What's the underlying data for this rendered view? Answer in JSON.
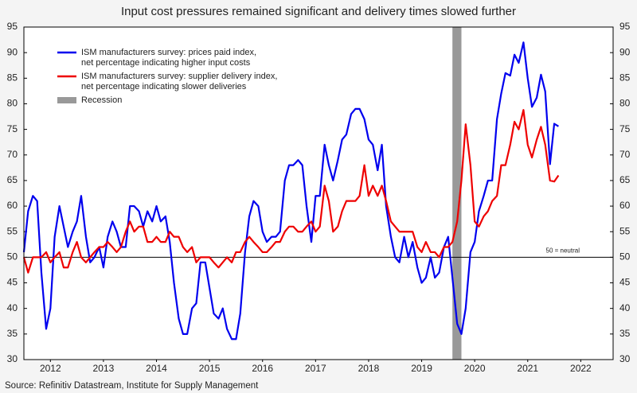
{
  "chart_data": {
    "type": "line",
    "title": "Input cost pressures remained significant and delivery times slowed further",
    "source": "Source: Refinitiv Datastream, Institute for Supply Management",
    "annotation": "50 = neutral",
    "hline": 50,
    "recession": {
      "name": "Recession",
      "color": "#999999",
      "x": [
        2020.08,
        2020.25
      ]
    },
    "x": [
      2012.0,
      2012.08,
      2012.17,
      2012.25,
      2012.33,
      2012.42,
      2012.5,
      2012.58,
      2012.67,
      2012.75,
      2012.83,
      2012.92,
      2013.0,
      2013.08,
      2013.17,
      2013.25,
      2013.33,
      2013.42,
      2013.5,
      2013.58,
      2013.67,
      2013.75,
      2013.83,
      2013.92,
      2014.0,
      2014.08,
      2014.17,
      2014.25,
      2014.33,
      2014.42,
      2014.5,
      2014.58,
      2014.67,
      2014.75,
      2014.83,
      2014.92,
      2015.0,
      2015.08,
      2015.17,
      2015.25,
      2015.33,
      2015.42,
      2015.5,
      2015.58,
      2015.67,
      2015.75,
      2015.83,
      2015.92,
      2016.0,
      2016.08,
      2016.17,
      2016.25,
      2016.33,
      2016.42,
      2016.5,
      2016.58,
      2016.67,
      2016.75,
      2016.83,
      2016.92,
      2017.0,
      2017.08,
      2017.17,
      2017.25,
      2017.33,
      2017.42,
      2017.5,
      2017.58,
      2017.67,
      2017.75,
      2017.83,
      2017.92,
      2018.0,
      2018.08,
      2018.17,
      2018.25,
      2018.33,
      2018.42,
      2018.5,
      2018.58,
      2018.67,
      2018.75,
      2018.83,
      2018.92,
      2019.0,
      2019.08,
      2019.17,
      2019.25,
      2019.33,
      2019.42,
      2019.5,
      2019.58,
      2019.67,
      2019.75,
      2019.83,
      2019.92,
      2020.0,
      2020.08,
      2020.17,
      2020.25,
      2020.33,
      2020.42,
      2020.5,
      2020.58,
      2020.67,
      2020.75,
      2020.83,
      2020.92,
      2021.0,
      2021.08,
      2021.17,
      2021.25,
      2021.33,
      2021.42,
      2021.5,
      2021.58,
      2021.67,
      2021.75,
      2021.83,
      2021.92,
      2022.0,
      2022.08
    ],
    "series": [
      {
        "name": "ISM manufacturers survey: prices paid index,\nnet percentage indicating higher input costs",
        "color": "#0000ee",
        "values": [
          51,
          59,
          62,
          61,
          47,
          36,
          40,
          54,
          60,
          56,
          52,
          55,
          57,
          62,
          54,
          49,
          50,
          52,
          48,
          54,
          57,
          55,
          52,
          52,
          60,
          60,
          59,
          56,
          59,
          57,
          60,
          57,
          58,
          53,
          45,
          38,
          35,
          35,
          40,
          41,
          49,
          49,
          44,
          39,
          38,
          40,
          36,
          34,
          34,
          39,
          51,
          58,
          61,
          60,
          55,
          53,
          54,
          54,
          55,
          65,
          68,
          68,
          69,
          68,
          60,
          53,
          62,
          62,
          72,
          68,
          65,
          69,
          73,
          74,
          78,
          79,
          79,
          77,
          73,
          72,
          67,
          72,
          60,
          54,
          50,
          49,
          54,
          50,
          53,
          48,
          45,
          46,
          50,
          46,
          47,
          52,
          54,
          46,
          37,
          35,
          40,
          51,
          53,
          59,
          62,
          65,
          65,
          77,
          82,
          86,
          85.5,
          89.6,
          88,
          92,
          85,
          79.4,
          81.2,
          85.7,
          82.4,
          68.2,
          76.1,
          75.6
        ]
      },
      {
        "name": "ISM manufacturers survey: supplier delivery index,\nnet percentage indicating slower deliveries",
        "color": "#ee0000",
        "values": [
          50,
          47,
          50,
          50,
          50,
          51,
          49,
          50,
          51,
          48,
          48,
          51,
          53,
          50,
          49,
          50,
          51,
          52,
          52,
          53,
          52,
          51,
          52,
          55,
          57,
          55,
          56,
          56,
          53,
          53,
          54,
          53,
          53,
          55,
          54,
          54,
          52,
          51,
          52,
          49,
          50,
          50,
          50,
          49,
          48,
          49,
          50,
          49,
          51,
          51,
          53,
          54,
          53,
          52,
          51,
          51,
          52,
          53,
          53,
          55,
          56,
          56,
          55,
          55,
          56,
          57,
          55,
          56,
          64,
          61,
          55,
          56,
          59,
          61,
          61,
          61,
          62,
          68,
          62,
          64,
          62,
          64,
          61,
          57,
          56,
          55,
          55,
          55,
          55,
          52,
          51,
          53,
          51,
          51,
          50,
          52,
          52,
          53,
          57,
          65,
          76,
          68,
          57,
          56,
          58,
          59,
          61,
          62,
          68,
          68,
          72,
          76.5,
          75,
          78.8,
          72,
          69.5,
          73,
          75.5,
          72,
          65,
          64.8,
          66
        ]
      }
    ],
    "xlim": [
      2012,
      2023.11
    ],
    "xticks": [
      {
        "value": 2012.5,
        "label": "2012"
      },
      {
        "value": 2013.5,
        "label": "2013"
      },
      {
        "value": 2014.5,
        "label": "2014"
      },
      {
        "value": 2015.5,
        "label": "2015"
      },
      {
        "value": 2016.5,
        "label": "2016"
      },
      {
        "value": 2017.5,
        "label": "2017"
      },
      {
        "value": 2018.5,
        "label": "2018"
      },
      {
        "value": 2019.5,
        "label": "2019"
      },
      {
        "value": 2020.5,
        "label": "2020"
      },
      {
        "value": 2021.5,
        "label": "2021"
      },
      {
        "value": 2022.5,
        "label": "2022"
      }
    ],
    "ylim": [
      30,
      95
    ],
    "yticks": [
      30,
      35,
      40,
      45,
      50,
      55,
      60,
      65,
      70,
      75,
      80,
      85,
      90,
      95
    ],
    "y2lim": [
      30,
      95
    ],
    "y2ticks": [
      30,
      35,
      40,
      45,
      50,
      55,
      60,
      65,
      70,
      75,
      80,
      85,
      90,
      95
    ],
    "legend": "upper left"
  }
}
